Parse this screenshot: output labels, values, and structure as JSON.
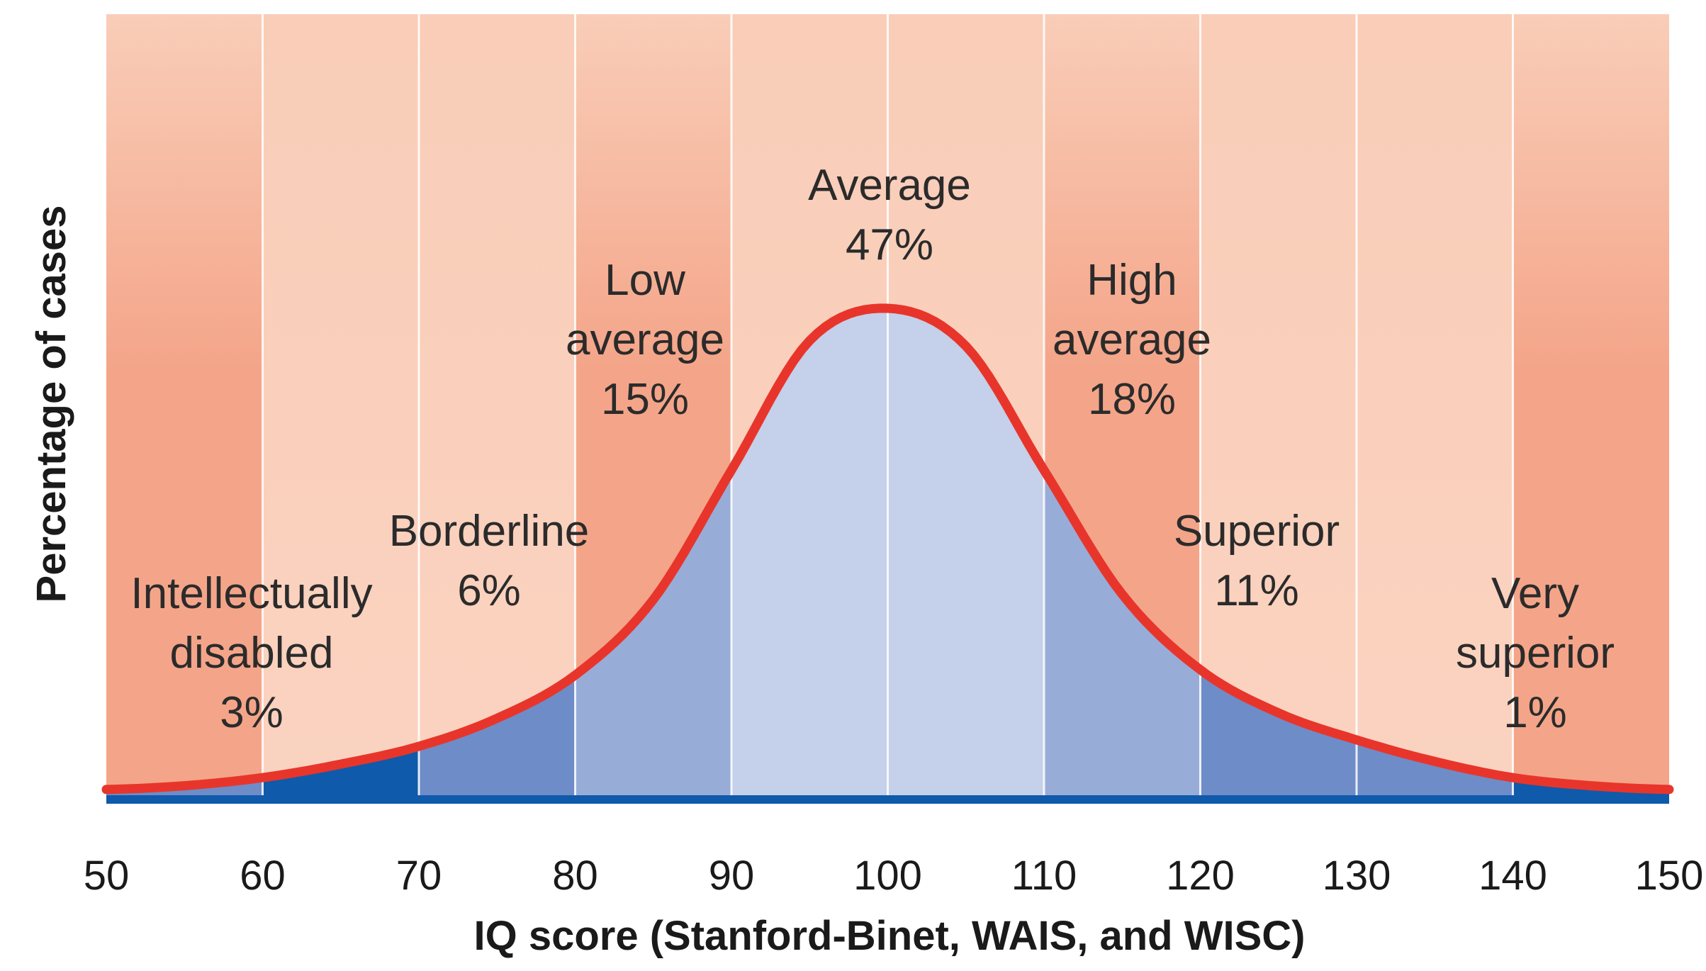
{
  "chart_data": {
    "type": "area",
    "xlabel": "IQ score (Stanford-Binet, WAIS, and WISC)",
    "ylabel": "Percentage of cases",
    "xlim": [
      50,
      150
    ],
    "x_ticks": [
      50,
      60,
      70,
      80,
      90,
      100,
      110,
      120,
      130,
      140,
      150
    ],
    "grid": true,
    "categories": [
      {
        "label_lines": [
          "Intellectually",
          "disabled",
          "3%"
        ],
        "range": [
          50,
          70
        ],
        "percent": 3
      },
      {
        "label_lines": [
          "Borderline",
          "6%"
        ],
        "range": [
          70,
          80
        ],
        "percent": 6
      },
      {
        "label_lines": [
          "Low",
          "average",
          "15%"
        ],
        "range": [
          80,
          90
        ],
        "percent": 15
      },
      {
        "label_lines": [
          "Average",
          "47%"
        ],
        "range": [
          90,
          110
        ],
        "percent": 47
      },
      {
        "label_lines": [
          "High",
          "average",
          "18%"
        ],
        "range": [
          110,
          120
        ],
        "percent": 18
      },
      {
        "label_lines": [
          "Superior",
          "11%"
        ],
        "range": [
          120,
          140
        ],
        "percent": 11
      },
      {
        "label_lines": [
          "Very",
          "superior",
          "1%"
        ],
        "range": [
          140,
          150
        ],
        "percent": 1
      }
    ],
    "curve": {
      "x": [
        50,
        55,
        60,
        65,
        70,
        75,
        80,
        85,
        90,
        95,
        100,
        105,
        110,
        115,
        120,
        125,
        130,
        135,
        140,
        145,
        150
      ],
      "y": [
        0.8,
        1.5,
        3.0,
        5.5,
        8.8,
        14,
        22,
        36,
        60,
        84,
        90,
        83,
        60,
        37,
        23,
        15,
        10,
        6.0,
        3.0,
        1.5,
        0.8
      ]
    },
    "colors": {
      "curve": "#e8352b",
      "band_dark": "#f4a589",
      "band_light": "#f9cdb8",
      "band_mid": "#f8c3ad",
      "fill_deep": "#0f5aab",
      "fill_mid": "#6e8cc8",
      "fill_soft": "#98acd8",
      "fill_light": "#c5d0ea",
      "grid": "#ffffff",
      "baseline": "#0f5aab"
    }
  }
}
